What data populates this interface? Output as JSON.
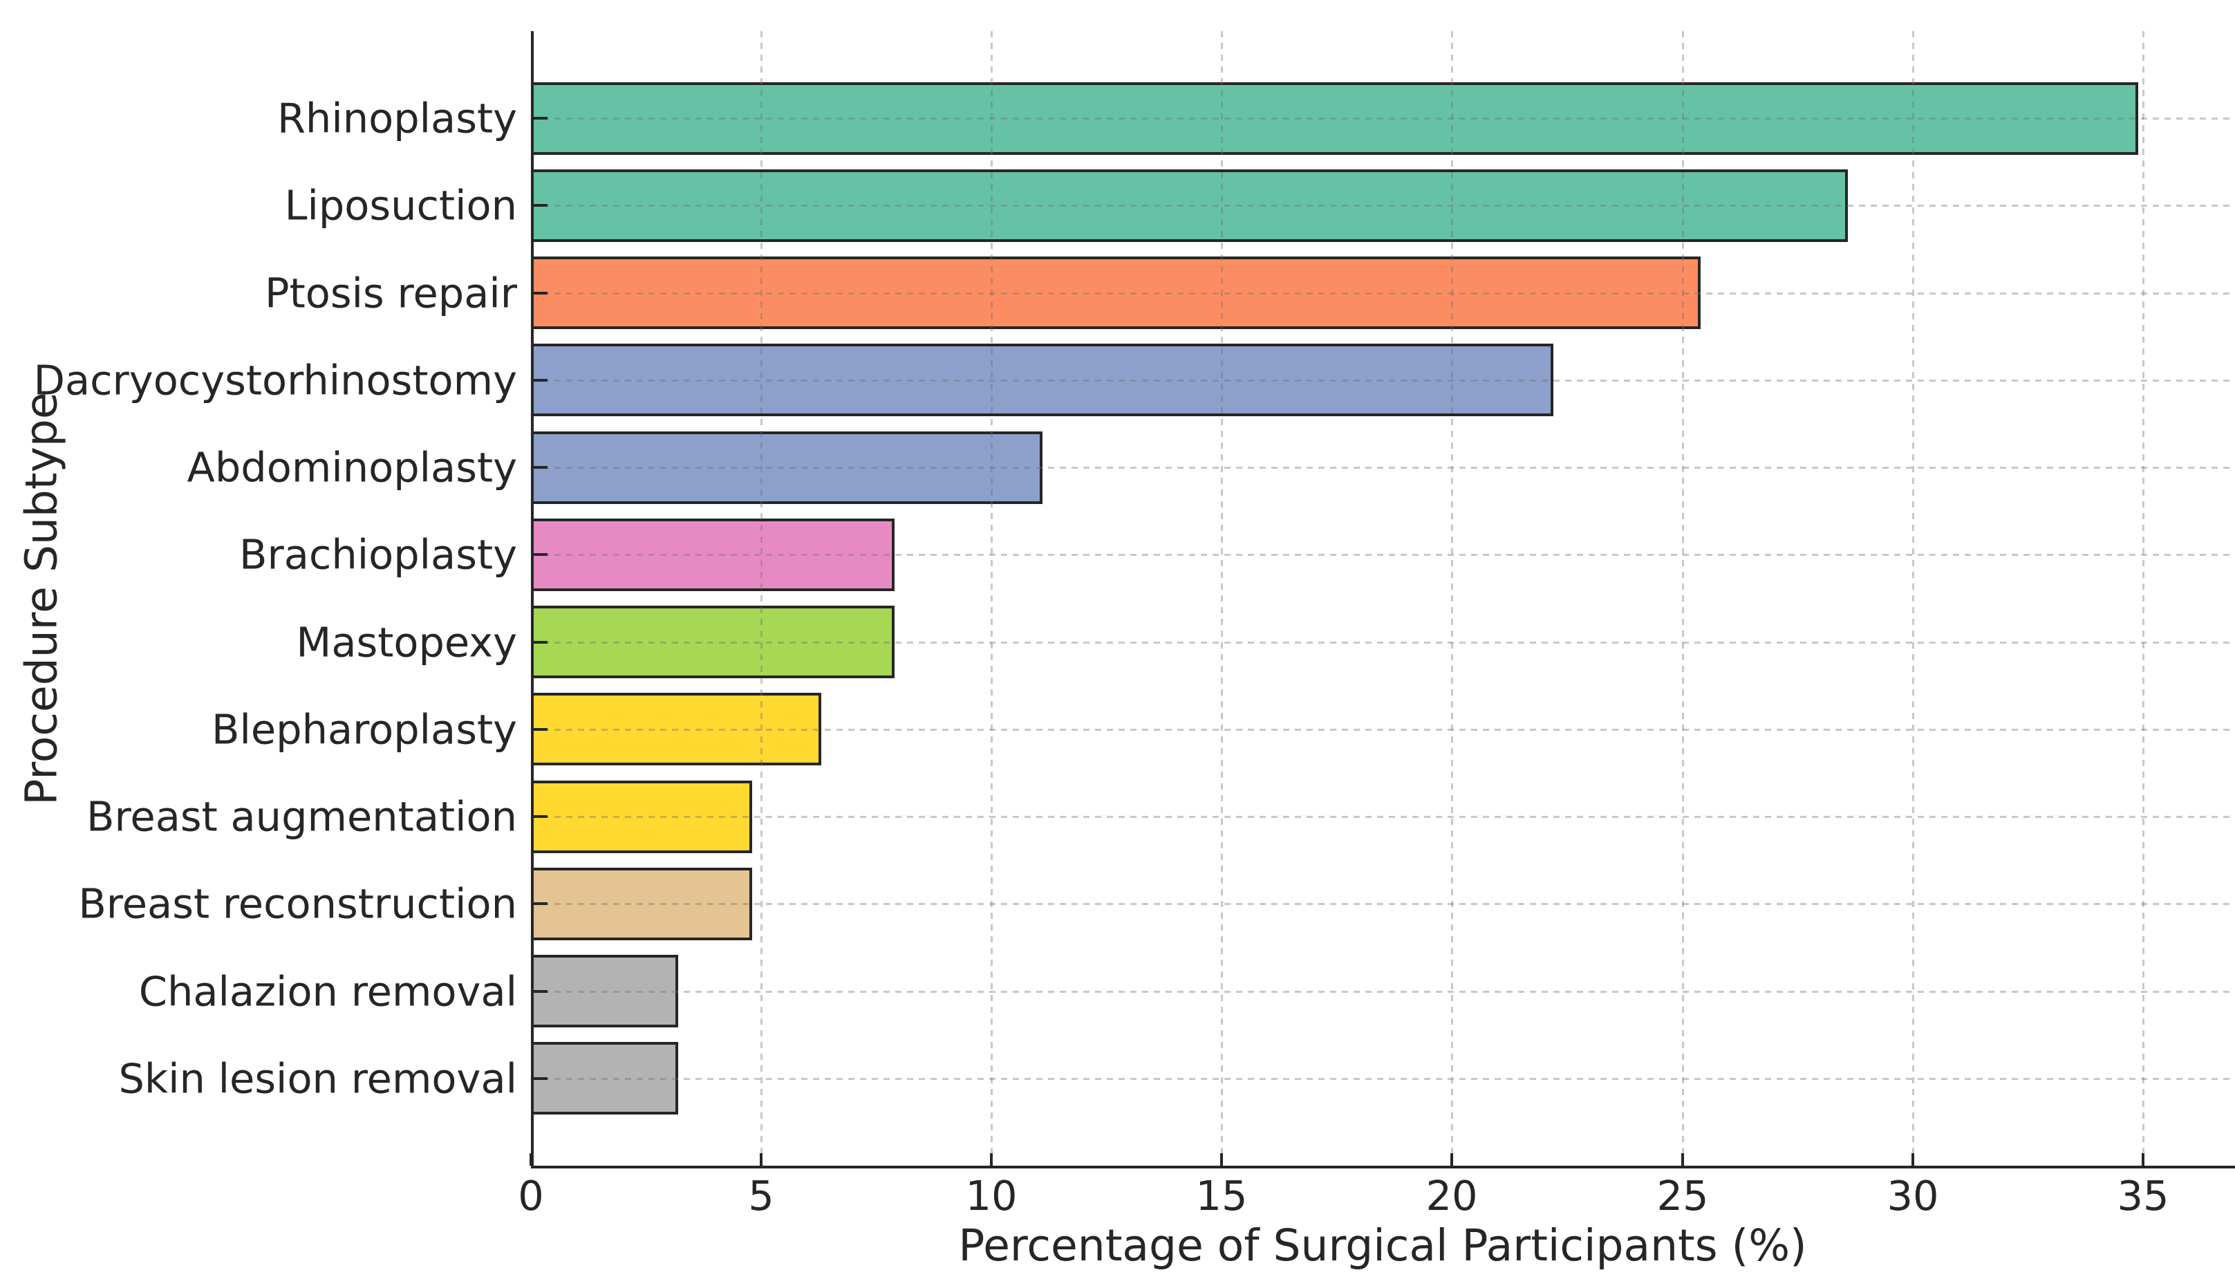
{
  "figure": {
    "background": "#ffffff",
    "text_color": "#262626",
    "spine_color": "#262626",
    "grid_color": "#c9c9c9",
    "grid_style": "dashed"
  },
  "chart_data": {
    "type": "bar",
    "orientation": "horizontal",
    "title": "",
    "xlabel": "Percentage of Surgical Participants (%)",
    "ylabel": "Procedure Subtype",
    "categories": [
      "Rhinoplasty",
      "Liposuction",
      "Ptosis repair",
      "Dacryocystorhinostomy",
      "Abdominoplasty",
      "Brachioplasty",
      "Mastopexy",
      "Blepharoplasty",
      "Breast augmentation",
      "Breast reconstruction",
      "Chalazion removal",
      "Skin lesion removal"
    ],
    "values": [
      34.9,
      28.6,
      25.4,
      22.2,
      11.1,
      7.9,
      7.9,
      6.3,
      4.8,
      4.8,
      3.2,
      3.2
    ],
    "bar_colors": [
      "#66c2a5",
      "#66c2a5",
      "#fc8d62",
      "#8da0cb",
      "#8da0cb",
      "#e78ac3",
      "#a6d854",
      "#ffd92f",
      "#ffd92f",
      "#e5c494",
      "#b3b3b3",
      "#b3b3b3"
    ],
    "bar_edge_color": "#262626",
    "xticks": [
      0,
      5,
      10,
      15,
      20,
      25,
      30,
      35
    ],
    "xlim": [
      0,
      37
    ],
    "grid": "both-axes, dashed, drawn over bars",
    "legend": "none"
  }
}
